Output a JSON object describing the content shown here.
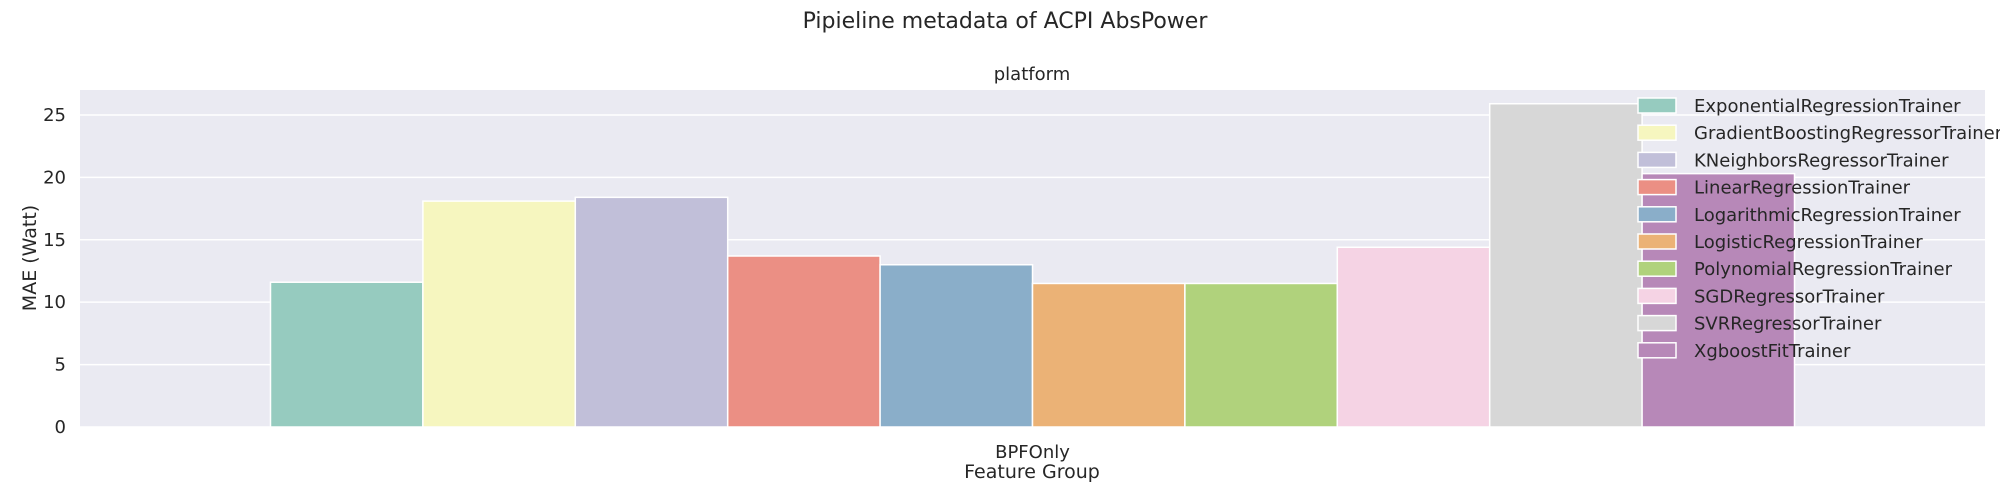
{
  "chart_data": {
    "type": "bar",
    "title": "Pipieline metadata of ACPI AbsPower",
    "subtitle": "platform",
    "xlabel": "Feature Group",
    "ylabel": "MAE (Watt)",
    "categories": [
      "BPFOnly"
    ],
    "ylim": [
      0,
      27
    ],
    "yticks": [
      0,
      5,
      10,
      15,
      20,
      25
    ],
    "grid": true,
    "legend_position": "top-right",
    "series": [
      {
        "name": "ExponentialRegressionTrainer",
        "values": [
          11.6
        ],
        "color": "#96cbbf"
      },
      {
        "name": "GradientBoostingRegressorTrainer",
        "values": [
          18.1
        ],
        "color": "#f6f6bf"
      },
      {
        "name": "KNeighborsRegressorTrainer",
        "values": [
          18.4
        ],
        "color": "#c1bfd9"
      },
      {
        "name": "LinearRegressionTrainer",
        "values": [
          13.7
        ],
        "color": "#eb8f84"
      },
      {
        "name": "LogarithmicRegressionTrainer",
        "values": [
          13.0
        ],
        "color": "#8aaec9"
      },
      {
        "name": "LogisticRegressionTrainer",
        "values": [
          11.5
        ],
        "color": "#ebb276"
      },
      {
        "name": "PolynomialRegressionTrainer",
        "values": [
          11.5
        ],
        "color": "#b0d27c"
      },
      {
        "name": "SGDRegressorTrainer",
        "values": [
          14.4
        ],
        "color": "#f5d3e4"
      },
      {
        "name": "SVRRegressorTrainer",
        "values": [
          25.9
        ],
        "color": "#d7d7d7"
      },
      {
        "name": "XgboostFitTrainer",
        "values": [
          20.3
        ],
        "color": "#b788b8"
      }
    ]
  }
}
